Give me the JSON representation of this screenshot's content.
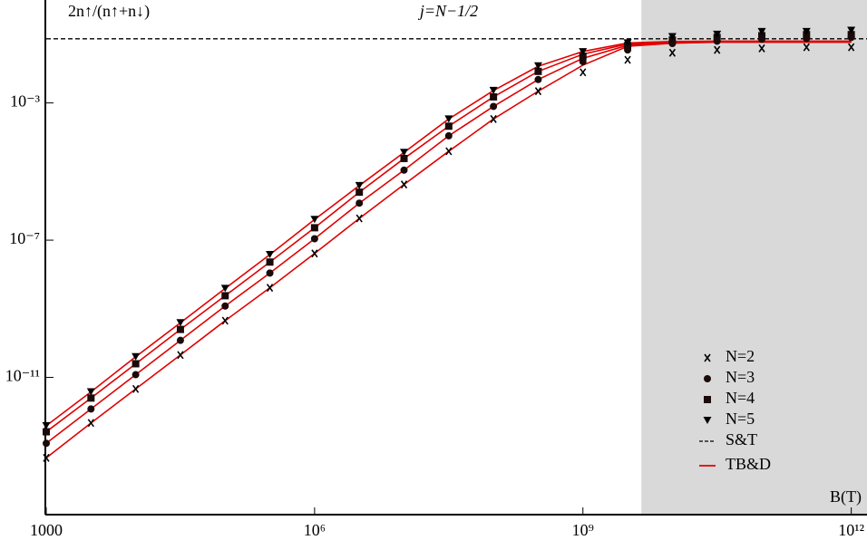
{
  "chart_data": {
    "type": "scatter",
    "title": "j=N−1/2",
    "y_label": "2n↑/(n↑+n↓)",
    "x_label": "B(T)",
    "x_scale": "log",
    "y_scale": "log",
    "xlim": [
      1000,
      1500000000000.0
    ],
    "ylim": [
      1e-15,
      1
    ],
    "xticks": [
      1000,
      {
        "value": 1000000.0,
        "label": "10⁶"
      },
      {
        "value": 1000000000.0,
        "label": "10⁹"
      },
      {
        "value": 1000000000000.0,
        "label": "10¹²"
      }
    ],
    "yticks": [
      {
        "value": 1e-11,
        "label": "10⁻¹¹"
      },
      {
        "value": 1e-07,
        "label": "10⁻⁷"
      },
      {
        "value": 0.001,
        "label": "10⁻³"
      }
    ],
    "shaded_from": 4500000000.0,
    "shade_color": "#d9d9d9",
    "legend": "lower right",
    "x": [
      1000,
      3162.28,
      10000,
      31622.8,
      100000,
      316228,
      1000000,
      3162280,
      10000000,
      31622800,
      100000000,
      316228000,
      1000000000,
      3162280000,
      10000000000,
      31622800000,
      100000000000,
      316228000000,
      1000000000000
    ],
    "series": [
      {
        "name": "N=2",
        "marker": "x",
        "color": "#000000",
        "values": [
          4.5e-14,
          4.7e-13,
          4.6e-12,
          4.5e-11,
          4.5e-10,
          4.1e-09,
          4.1e-08,
          4.3e-07,
          4.2e-06,
          3.9e-05,
          0.00034,
          0.0022,
          0.0078,
          0.018,
          0.029,
          0.035,
          0.039,
          0.042,
          0.042
        ]
      },
      {
        "name": "N=3",
        "marker": "circle",
        "color": "#1a0a0a",
        "values": [
          1.2e-13,
          1.2e-12,
          1.2e-11,
          1.2e-10,
          1.2e-09,
          1.1e-08,
          1.1e-07,
          1.2e-06,
          1.1e-05,
          0.00011,
          0.00079,
          0.0048,
          0.016,
          0.035,
          0.054,
          0.063,
          0.072,
          0.076,
          0.081
        ]
      },
      {
        "name": "N=4",
        "marker": "square",
        "color": "#1a0a0a",
        "values": [
          2.6e-13,
          2.5e-12,
          2.5e-11,
          2.5e-10,
          2.4e-09,
          2.3e-08,
          2.3e-07,
          2.5e-06,
          2.4e-05,
          0.00021,
          0.0015,
          0.0083,
          0.023,
          0.047,
          0.068,
          0.081,
          0.091,
          0.098,
          0.098
        ]
      },
      {
        "name": "N=5",
        "marker": "triangle-down",
        "color": "#000000",
        "values": [
          3.9e-13,
          3.8e-12,
          4e-11,
          3.9e-10,
          3.9e-09,
          3.8e-08,
          4e-07,
          3.9e-06,
          3.6e-05,
          0.00034,
          0.0023,
          0.012,
          0.031,
          0.056,
          0.085,
          0.1,
          0.12,
          0.12,
          0.13
        ]
      }
    ],
    "reference_line": {
      "name": "S&T",
      "value": 0.074,
      "color": "#000000",
      "dash": true
    },
    "fit_curves": {
      "name": "TB&D",
      "color": "#e00000",
      "series": [
        {
          "values": [
            4.5e-14,
            4.7e-13,
            4.6e-12,
            4.5e-11,
            4.5e-10,
            4.1e-09,
            4.1e-08,
            4.3e-07,
            4.2e-06,
            3.9e-05,
            0.00034,
            0.0022,
            0.0126,
            0.0447,
            0.055,
            0.0589,
            0.0589,
            0.0589,
            0.0589
          ]
        },
        {
          "values": [
            1.2e-13,
            1.2e-12,
            1.2e-11,
            1.2e-10,
            1.2e-09,
            1.1e-08,
            1.1e-07,
            1.2e-06,
            1.1e-05,
            0.00011,
            0.00079,
            0.0048,
            0.02,
            0.048,
            0.0575,
            0.06,
            0.06,
            0.06,
            0.06
          ]
        },
        {
          "values": [
            2.6e-13,
            2.5e-12,
            2.5e-11,
            2.5e-10,
            2.4e-09,
            2.3e-08,
            2.3e-07,
            2.5e-06,
            2.4e-05,
            0.00021,
            0.0015,
            0.0083,
            0.0263,
            0.0525,
            0.06,
            0.0617,
            0.0617,
            0.0617,
            0.0617
          ]
        },
        {
          "values": [
            3.9e-13,
            3.8e-12,
            4e-11,
            3.9e-10,
            3.9e-09,
            3.8e-08,
            4e-07,
            3.9e-06,
            3.6e-05,
            0.00034,
            0.0023,
            0.0117,
            0.0316,
            0.056,
            0.0617,
            0.063,
            0.063,
            0.063,
            0.063
          ]
        }
      ]
    }
  }
}
